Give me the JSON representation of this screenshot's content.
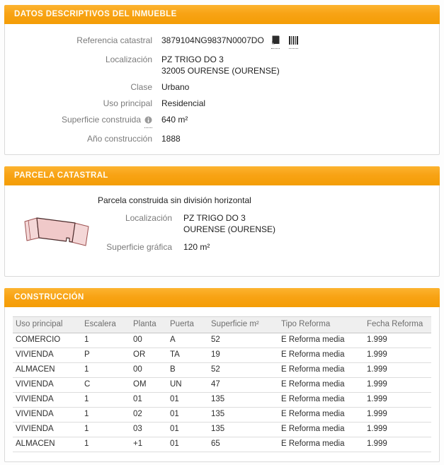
{
  "colors": {
    "accent_orange": "#F8A315",
    "panel_border": "#DADADA",
    "label_gray": "#7B7B7B",
    "value_dark": "#1F1F1F",
    "table_header_bg": "#EFEFEF",
    "parcel_fill_light": "#F4D7D7",
    "parcel_fill_mid": "#F0C9C9",
    "parcel_stroke": "#9C5050"
  },
  "sections": {
    "inmueble": {
      "title": "DATOS DESCRIPTIVOS DEL INMUEBLE",
      "fields": {
        "referencia": {
          "label": "Referencia catastral",
          "value": "3879104NG9837N0007DO",
          "icons": [
            "copy-icon",
            "barcode-icon"
          ]
        },
        "localizacion": {
          "label": "Localización",
          "line1": "PZ TRIGO DO 3",
          "line2": "32005 OURENSE (OURENSE)"
        },
        "clase": {
          "label": "Clase",
          "value": "Urbano"
        },
        "uso": {
          "label": "Uso principal",
          "value": "Residencial"
        },
        "superficie": {
          "label": "Superficie construida",
          "value": "640 m²",
          "info_icon": "info-icon"
        },
        "anio": {
          "label": "Año construcción",
          "value": "1888"
        }
      }
    },
    "parcela": {
      "title": "PARCELA CATASTRAL",
      "note": "Parcela construida sin división horizontal",
      "fields": {
        "localizacion": {
          "label": "Localización",
          "line1": "PZ TRIGO DO 3",
          "line2": "OURENSE (OURENSE)"
        },
        "superficie_grafica": {
          "label": "Superficie gráfica",
          "value": "120 m²"
        }
      },
      "map_icon": "parcel-shape"
    },
    "construccion": {
      "title": "CONSTRUCCIÓN",
      "table": {
        "headers": [
          "Uso principal",
          "Escalera",
          "Planta",
          "Puerta",
          "Superficie m²",
          "Tipo Reforma",
          "Fecha Reforma"
        ],
        "rows": [
          [
            "COMERCIO",
            "1",
            "00",
            "A",
            "52",
            "E Reforma media",
            "1.999"
          ],
          [
            "VIVIENDA",
            "P",
            "OR",
            "TA",
            "19",
            "E Reforma media",
            "1.999"
          ],
          [
            "ALMACEN",
            "1",
            "00",
            "B",
            "52",
            "E Reforma media",
            "1.999"
          ],
          [
            "VIVIENDA",
            "C",
            "OM",
            "UN",
            "47",
            "E Reforma media",
            "1.999"
          ],
          [
            "VIVIENDA",
            "1",
            "01",
            "01",
            "135",
            "E Reforma media",
            "1.999"
          ],
          [
            "VIVIENDA",
            "1",
            "02",
            "01",
            "135",
            "E Reforma media",
            "1.999"
          ],
          [
            "VIVIENDA",
            "1",
            "03",
            "01",
            "135",
            "E Reforma media",
            "1.999"
          ],
          [
            "ALMACEN",
            "1",
            "+1",
            "01",
            "65",
            "E Reforma media",
            "1.999"
          ]
        ]
      }
    }
  }
}
